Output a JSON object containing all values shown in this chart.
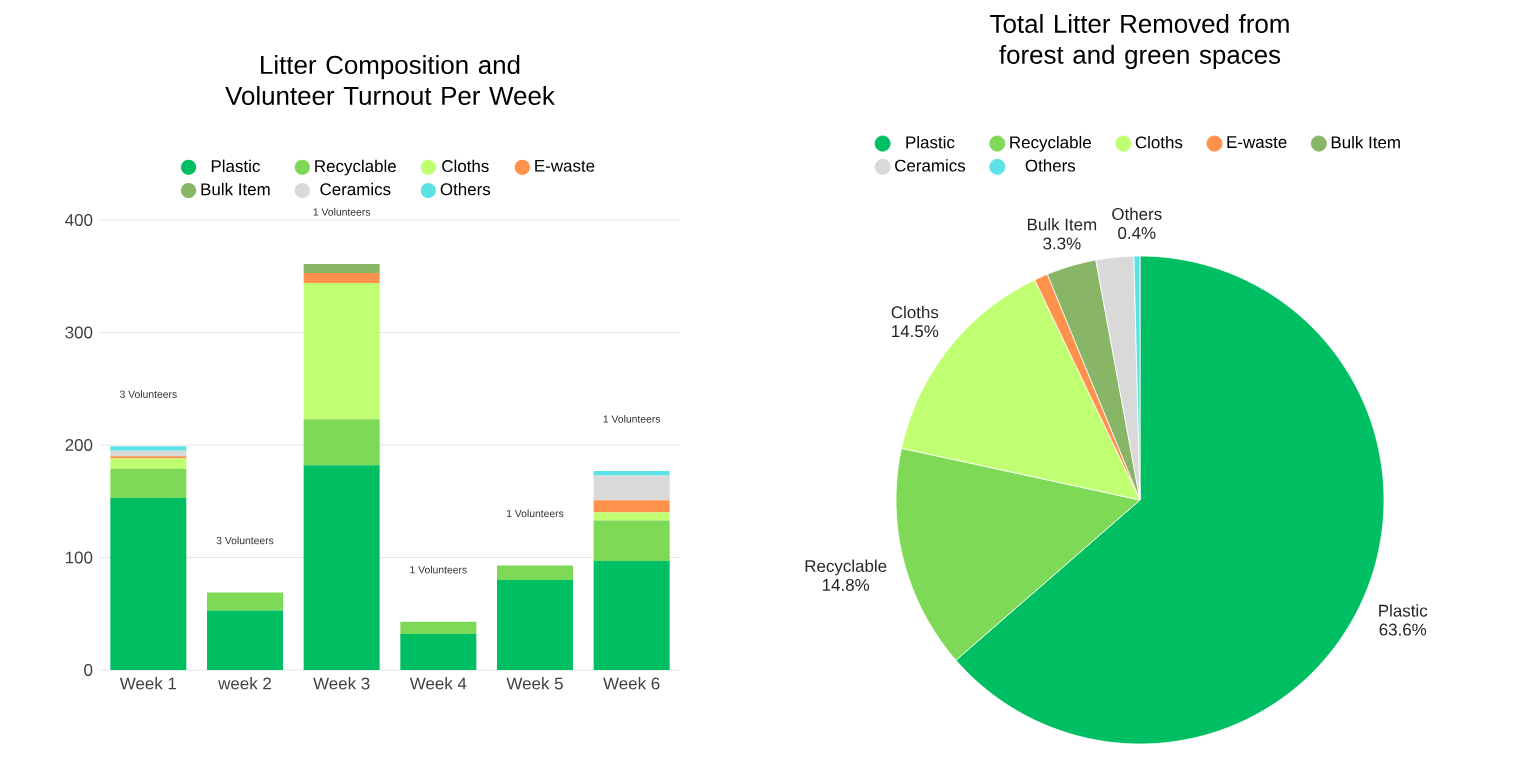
{
  "chart_data": [
    {
      "type": "bar",
      "title": "Litter Composition and Volunteer Turnout Per Week",
      "categories": [
        "Week 1",
        "week 2",
        "Week 3",
        "Week 4",
        "Week 5",
        "Week 6"
      ],
      "series": [
        {
          "name": "Plastic",
          "color": "#00bf63",
          "values": [
            153,
            53,
            182,
            32,
            80,
            97
          ]
        },
        {
          "name": "Recyclable",
          "color": "#7ed957",
          "values": [
            26,
            16,
            41,
            11,
            13,
            36
          ]
        },
        {
          "name": "Cloths",
          "color": "#c1ff72",
          "values": [
            9,
            0,
            121,
            0,
            0,
            7
          ]
        },
        {
          "name": "E-waste",
          "color": "#ff914d",
          "values": [
            2,
            0,
            9,
            0,
            0,
            11
          ]
        },
        {
          "name": "Bulk Item",
          "color": "#88b566",
          "values": [
            0,
            0,
            8,
            0,
            0,
            0
          ]
        },
        {
          "name": "Ceramics",
          "color": "#d9d9d9",
          "values": [
            5,
            0,
            0,
            0,
            0,
            22
          ]
        },
        {
          "name": "Others",
          "color": "#5ce1e6",
          "values": [
            4,
            0,
            0,
            0,
            0,
            4
          ]
        }
      ],
      "stacked": true,
      "ylim": [
        0,
        400
      ],
      "yticks": [
        0,
        100,
        200,
        300,
        400
      ],
      "grid": "y",
      "legend": "top",
      "annotations": [
        "3 Volunteers",
        "3 Volunteers",
        "1 Volunteers",
        "1 Volunteers",
        "1 Volunteers",
        "1 Volunteers"
      ]
    },
    {
      "type": "pie",
      "title": "Total Litter Removed from forest and green spaces",
      "categories": [
        "Plastic",
        "Recyclable",
        "Cloths",
        "E-waste",
        "Bulk Item",
        "Ceramics",
        "Others"
      ],
      "values": [
        63.6,
        14.8,
        14.5,
        0.9,
        3.3,
        2.5,
        0.4
      ],
      "colors": [
        "#00bf63",
        "#7ed957",
        "#c1ff72",
        "#ff914d",
        "#88b566",
        "#d9d9d9",
        "#5ce1e6"
      ],
      "value_labels": [
        "63.6%",
        "14.8%",
        "14.5%",
        null,
        "3.3%",
        null,
        "0.4%"
      ],
      "legend": "top"
    }
  ]
}
